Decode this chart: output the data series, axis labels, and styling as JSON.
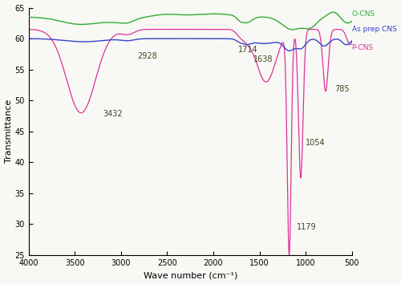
{
  "xlabel": "Wave number (cm⁻¹)",
  "ylabel": "Transmittance",
  "xlim": [
    4000,
    500
  ],
  "ylim": [
    25,
    65
  ],
  "yticks": [
    25,
    30,
    35,
    40,
    45,
    50,
    55,
    60,
    65
  ],
  "xticks": [
    4000,
    3500,
    3000,
    2500,
    2000,
    1500,
    1000,
    500
  ],
  "colors": {
    "green": "#33aa33",
    "blue": "#3344cc",
    "pink": "#dd3399"
  },
  "ann_color": "#444422",
  "legend_color": "#333333",
  "bg_color": "#f8f8f5"
}
